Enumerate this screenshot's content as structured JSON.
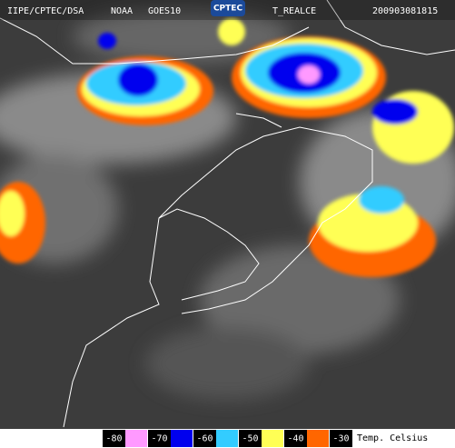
{
  "header": {
    "source": "IIPE/CPTEC/DSA",
    "agency": "NOAA",
    "satellite": "GOES10",
    "logo": "CPTEC",
    "product": "T_REALCE",
    "timestamp": "200903081815"
  },
  "legend": {
    "items": [
      {
        "label": "-80",
        "color": "#ff99ff"
      },
      {
        "label": "-70",
        "color": "#0000ee"
      },
      {
        "label": "-60",
        "color": "#33ccff"
      },
      {
        "label": "-50",
        "color": "#ffff55"
      },
      {
        "label": "-40",
        "color": "#ff6600"
      },
      {
        "label": "-30",
        "color": "#ffffff"
      }
    ],
    "unit": "Temp. Celsius"
  }
}
